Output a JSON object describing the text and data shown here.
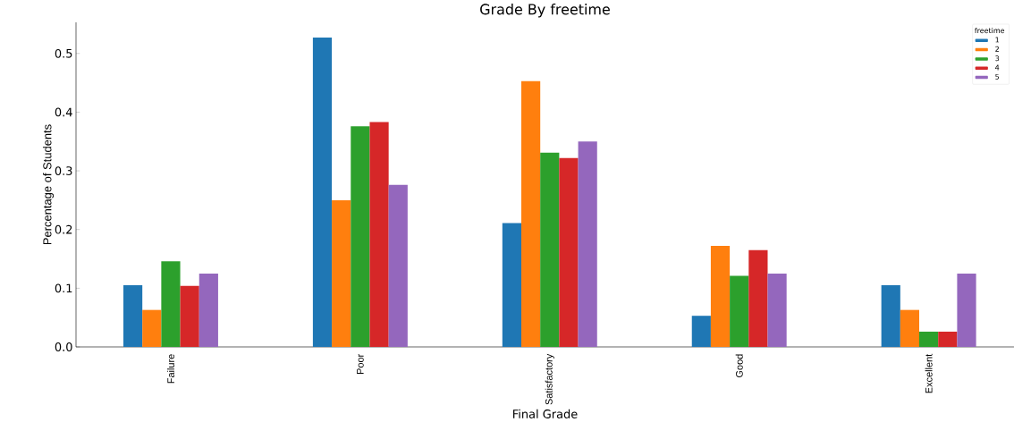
{
  "chart_data": {
    "type": "bar",
    "title": "Grade By freetime",
    "xlabel": "Final Grade",
    "ylabel": "Percentage of Students",
    "legend_title": "freetime",
    "legend": "top right",
    "categories": [
      "Failure",
      "Poor",
      "Satisfactory",
      "Good",
      "Excellent"
    ],
    "ylim": [
      0,
      0.553
    ],
    "yticks": [
      {
        "value": 0,
        "label": "0.0"
      },
      0.1,
      0.2,
      0.3,
      0.4,
      0.5
    ],
    "series": [
      {
        "name": "1",
        "color": "#1f77b4",
        "values": [
          0.105,
          0.527,
          0.211,
          0.053,
          0.105
        ]
      },
      {
        "name": "2",
        "color": "#ff7f0e",
        "values": [
          0.063,
          0.25,
          0.453,
          0.172,
          0.063
        ]
      },
      {
        "name": "3",
        "color": "#2ca02c",
        "values": [
          0.146,
          0.376,
          0.331,
          0.121,
          0.026
        ]
      },
      {
        "name": "4",
        "color": "#d62728",
        "values": [
          0.104,
          0.383,
          0.322,
          0.165,
          0.026
        ]
      },
      {
        "name": "5",
        "color": "#9467bd",
        "values": [
          0.125,
          0.276,
          0.35,
          0.125,
          0.125
        ]
      }
    ]
  }
}
